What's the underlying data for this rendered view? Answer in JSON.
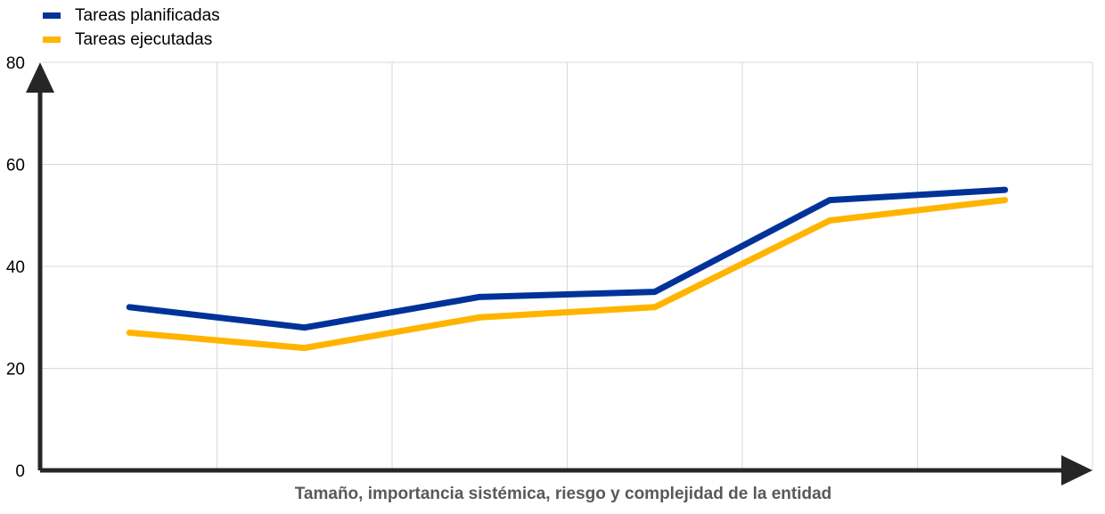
{
  "legend": {
    "items": [
      {
        "label": "Tareas planificadas",
        "color": "#003299"
      },
      {
        "label": "Tareas ejecutadas",
        "color": "#FFB400"
      }
    ]
  },
  "colors": {
    "axis": "#262626",
    "grid": "#d9d9d9",
    "axis_title": "#595959"
  },
  "chart_data": {
    "type": "line",
    "title": "",
    "xlabel": "Tamaño, importancia sistémica, riesgo y complejidad de la entidad",
    "ylabel": "",
    "x": [
      1,
      2,
      3,
      4,
      5,
      6
    ],
    "xlim": [
      0.5,
      6.5
    ],
    "ylim": [
      0,
      80
    ],
    "yticks": [
      0,
      20,
      40,
      60,
      80
    ],
    "grid": true,
    "legend_position": "top-left",
    "series": [
      {
        "name": "Tareas planificadas",
        "color": "#003299",
        "values": [
          32,
          28,
          34,
          35,
          53,
          55
        ]
      },
      {
        "name": "Tareas ejecutadas",
        "color": "#FFB400",
        "values": [
          27,
          24,
          30,
          32,
          49,
          53
        ]
      }
    ]
  }
}
